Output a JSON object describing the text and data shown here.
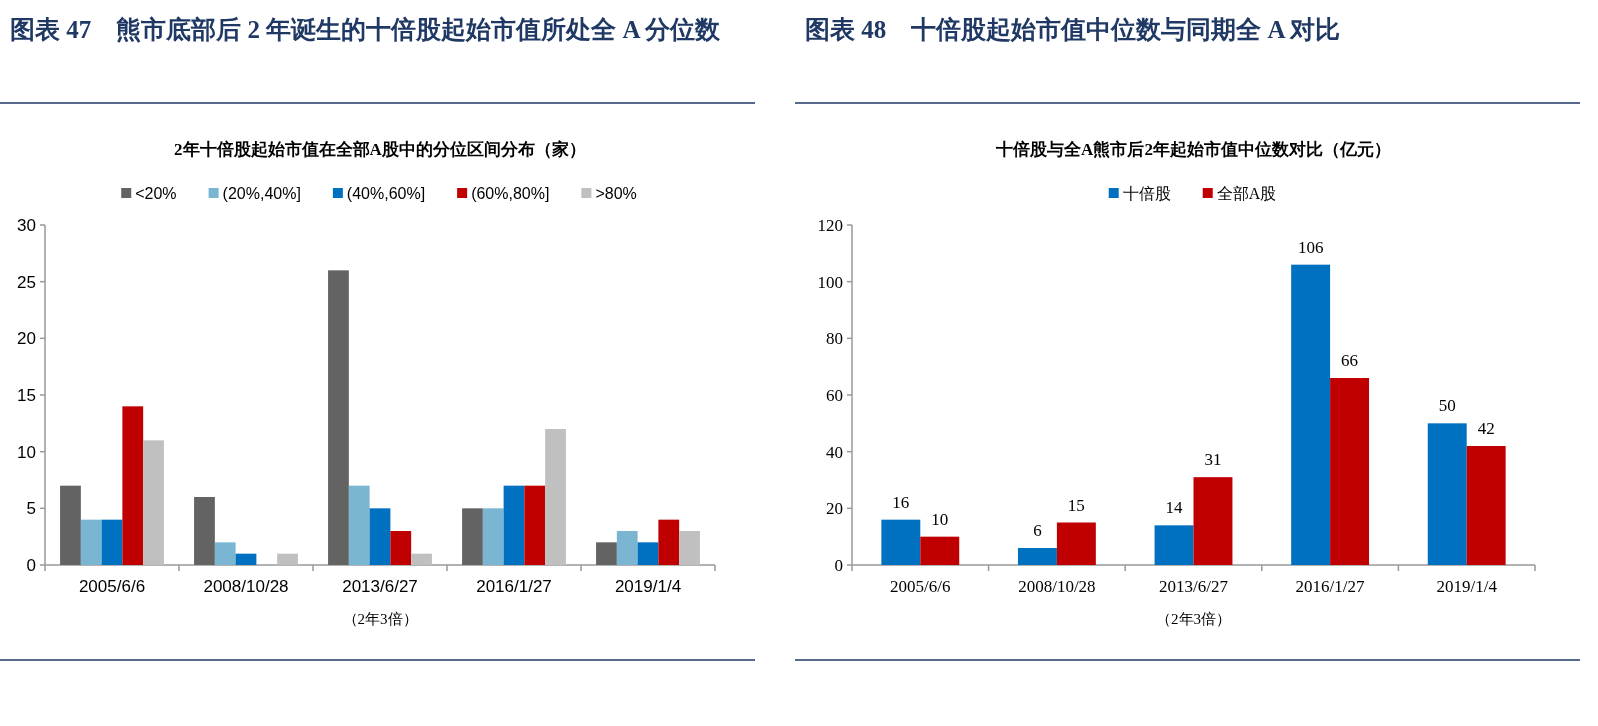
{
  "chart_data": [
    {
      "type": "bar",
      "title": "图表 47　熊市底部后 2 年诞生的十倍股起始市值所处全 A 分位数",
      "subtitle": "2年十倍股起始市值在全部A股中的分位区间分布（家）",
      "xlabel": "（2年3倍）",
      "categories": [
        "2005/6/6",
        "2008/10/28",
        "2013/6/27",
        "2016/1/27",
        "2019/1/4"
      ],
      "series": [
        {
          "name": "<20%",
          "color": "#636363",
          "values": [
            7,
            6,
            26,
            5,
            2
          ]
        },
        {
          "name": "(20%,40%]",
          "color": "#7ab6d2",
          "values": [
            4,
            2,
            7,
            5,
            3
          ]
        },
        {
          "name": "(40%,60%]",
          "color": "#0070c0",
          "values": [
            4,
            1,
            5,
            7,
            2
          ]
        },
        {
          "name": "(60%,80%]",
          "color": "#c00000",
          "values": [
            14,
            0,
            3,
            7,
            4
          ]
        },
        {
          "name": ">80%",
          "color": "#c0c0c0",
          "values": [
            11,
            1,
            1,
            12,
            3
          ]
        }
      ],
      "ylim": [
        0,
        30
      ],
      "yticks": [
        0,
        5,
        10,
        15,
        20,
        25,
        30
      ],
      "grid": false,
      "legend": "top"
    },
    {
      "type": "bar",
      "title": "图表 48　十倍股起始市值中位数与同期全 A 对比",
      "subtitle": "十倍股与全A熊市后2年起始市值中位数对比（亿元）",
      "xlabel": "（2年3倍）",
      "categories": [
        "2005/6/6",
        "2008/10/28",
        "2013/6/27",
        "2016/1/27",
        "2019/1/4"
      ],
      "series": [
        {
          "name": "十倍股",
          "color": "#0070c0",
          "values": [
            16,
            6,
            14,
            106,
            50
          ]
        },
        {
          "name": "全部A股",
          "color": "#c00000",
          "values": [
            10,
            15,
            31,
            66,
            42
          ]
        }
      ],
      "ylim": [
        0,
        120
      ],
      "yticks": [
        0,
        20,
        40,
        60,
        80,
        100,
        120
      ],
      "grid": false,
      "legend": "top",
      "data_labels": true
    }
  ]
}
